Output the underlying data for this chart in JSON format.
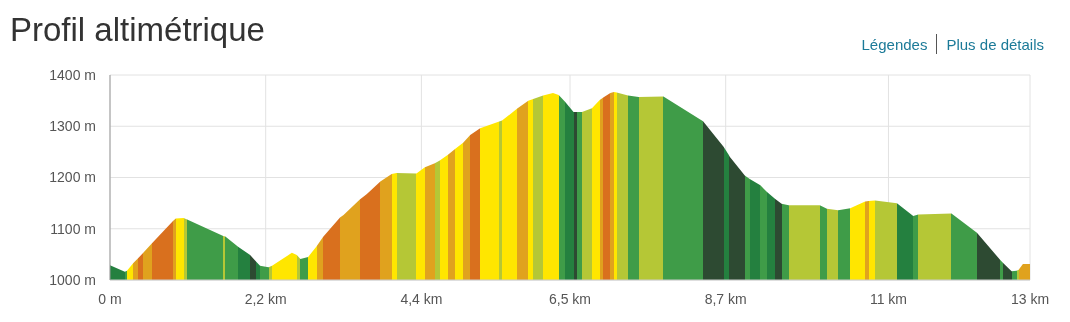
{
  "chart_data": {
    "type": "area",
    "title": "Profil altimétrique",
    "annotations": [
      "Légendes",
      "Plus de détails"
    ],
    "x": [
      0,
      0.21,
      0.24,
      0.33,
      0.4,
      0.47,
      0.59,
      0.89,
      0.93,
      1.04,
      1.09,
      1.6,
      1.63,
      1.81,
      1.98,
      2.07,
      2.12,
      2.24,
      2.29,
      2.57,
      2.64,
      2.69,
      2.8,
      2.92,
      3.01,
      3.25,
      3.3,
      3.53,
      3.63,
      3.82,
      3.98,
      4.05,
      4.33,
      4.45,
      4.59,
      4.66,
      4.78,
      4.88,
      4.99,
      5.09,
      5.23,
      5.49,
      5.54,
      5.75,
      5.91,
      5.98,
      6.12,
      6.26,
      6.34,
      6.43,
      6.55,
      6.6,
      6.67,
      6.81,
      6.92,
      6.97,
      7.07,
      7.12,
      7.16,
      7.32,
      7.47,
      7.82,
      8.38,
      8.67,
      8.74,
      8.76,
      8.97,
      9.04,
      9.19,
      9.28,
      9.4,
      9.49,
      9.59,
      10.03,
      10.13,
      10.29,
      10.46,
      10.67,
      10.72,
      10.81,
      11.12,
      11.35,
      11.42,
      11.89,
      12.25,
      12.58,
      12.62,
      12.74,
      12.81,
      12.84,
      12.9,
      13.0
    ],
    "values": [
      1029,
      1016,
      1018,
      1033,
      1043,
      1053,
      1071,
      1115,
      1120,
      1121,
      1118,
      1086,
      1085,
      1065,
      1049,
      1035,
      1028,
      1025,
      1028,
      1053,
      1049,
      1041,
      1045,
      1066,
      1084,
      1122,
      1127,
      1157,
      1168,
      1192,
      1207,
      1209,
      1208,
      1220,
      1228,
      1233,
      1245,
      1256,
      1268,
      1283,
      1296,
      1309,
      1311,
      1334,
      1350,
      1353,
      1360,
      1365,
      1361,
      1348,
      1328,
      1328,
      1328,
      1335,
      1351,
      1356,
      1365,
      1367,
      1366,
      1360,
      1357,
      1358,
      1310,
      1260,
      1245,
      1240,
      1204,
      1197,
      1185,
      1172,
      1158,
      1149,
      1146,
      1146,
      1139,
      1136,
      1140,
      1153,
      1154,
      1155,
      1150,
      1125,
      1128,
      1130,
      1092,
      1039,
      1033,
      1017,
      1018,
      1020,
      1031,
      1031
    ],
    "colors": [
      "#24803f",
      "#3f9c48",
      "#ffe600",
      "#e0a21e",
      "#d9701e",
      "#e0a21e",
      "#d9701e",
      "#e0a21e",
      "#ffe600",
      "#b5c736",
      "#3f9c48",
      "#b5c736",
      "#3f9c48",
      "#24803f",
      "#2d4a32",
      "#24803f",
      "#3f9c48",
      "#b5c736",
      "#ffe600",
      "#ffe600",
      "#b5c736",
      "#3f9c48",
      "#ffe600",
      "#e0a21e",
      "#d9701e",
      "#e0a21e",
      "#e0a21e",
      "#d9701e",
      "#d9701e",
      "#e0a21e",
      "#ffe600",
      "#b5c736",
      "#ffe600",
      "#e0a21e",
      "#b5c736",
      "#ffe600",
      "#e0a21e",
      "#ffe600",
      "#e0a21e",
      "#d9701e",
      "#ffe600",
      "#b5c736",
      "#ffe600",
      "#e0a21e",
      "#ffe600",
      "#b5c736",
      "#ffe600",
      "#ffe600",
      "#3f9c48",
      "#24803f",
      "#2d4a32",
      "#3f9c48",
      "#b5c736",
      "#ffe600",
      "#e0a21e",
      "#d9701e",
      "#e0a21e",
      "#ffe600",
      "#b5c736",
      "#3f9c48",
      "#b5c736",
      "#3f9c48",
      "#2d4a32",
      "#24803f",
      "#2d4a32",
      "#2d4a32",
      "#3f9c48",
      "#24803f",
      "#3f9c48",
      "#24803f",
      "#2d4a32",
      "#3f9c48",
      "#b5c736",
      "#3f9c48",
      "#b5c736",
      "#3f9c48",
      "#ffe600",
      "#e0a21e",
      "#ffe600",
      "#b5c736",
      "#24803f",
      "#3f9c48",
      "#b5c736",
      "#3f9c48",
      "#2d4a32",
      "#3f9c48",
      "#2d4a32",
      "#3f9c48",
      "#b5c736",
      "#e0a21e",
      "#e0a21e",
      "#e0a21e"
    ],
    "xlim": [
      0,
      13
    ],
    "xticks": [
      {
        "value": 0,
        "label": "0 m"
      },
      {
        "value": 2.2,
        "label": "2,2 km"
      },
      {
        "value": 4.4,
        "label": "4,4 km"
      },
      {
        "value": 6.5,
        "label": "6,5 km"
      },
      {
        "value": 8.7,
        "label": "8,7 km"
      },
      {
        "value": 11,
        "label": "11 km"
      },
      {
        "value": 13,
        "label": "13 km"
      }
    ],
    "ylim": [
      1000,
      1400
    ],
    "yticks": [
      {
        "value": 1000,
        "label": "1000 m"
      },
      {
        "value": 1100,
        "label": "1100 m"
      },
      {
        "value": 1200,
        "label": "1200 m"
      },
      {
        "value": 1300,
        "label": "1300 m"
      },
      {
        "value": 1400,
        "label": "1400 m"
      }
    ],
    "grid": true
  }
}
